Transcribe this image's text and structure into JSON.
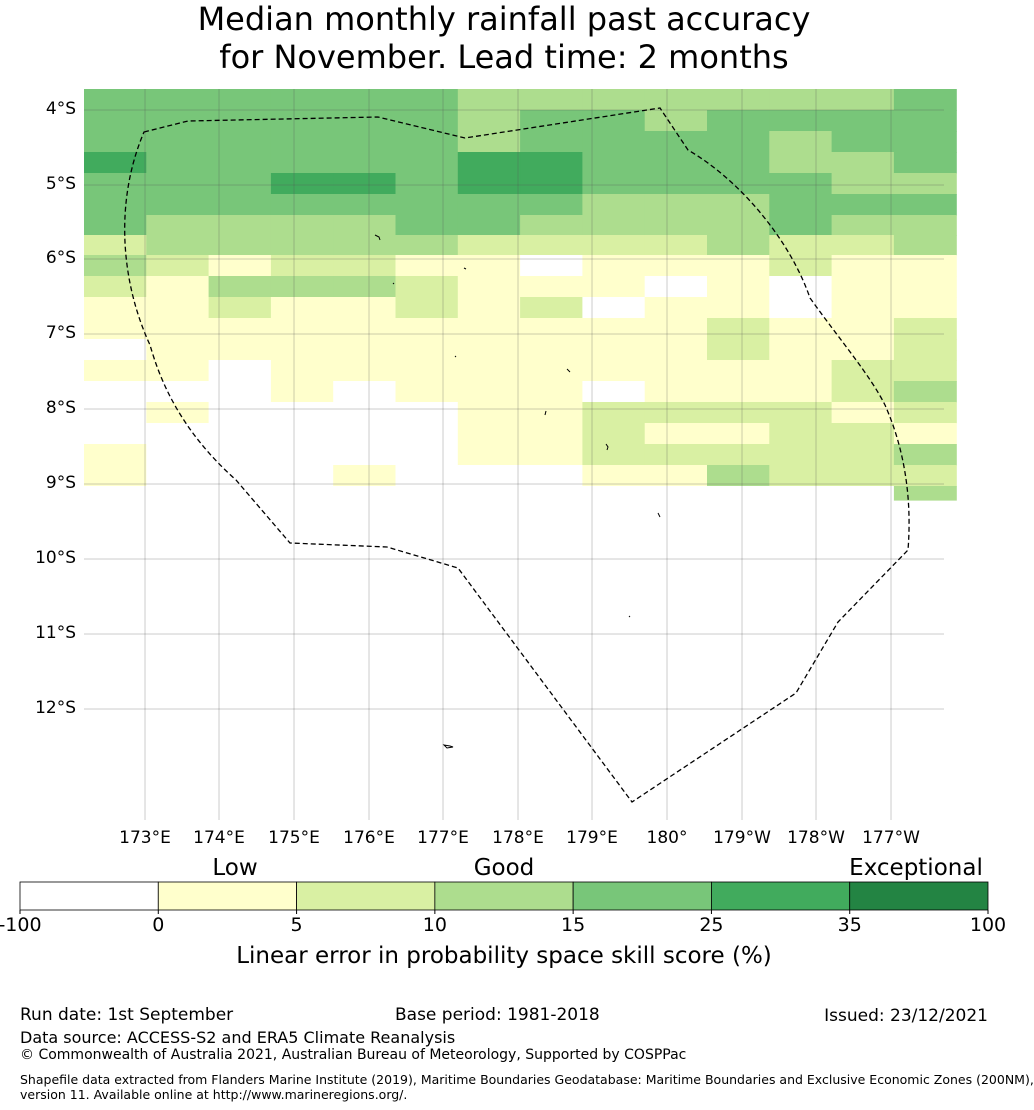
{
  "title_line1": "Median monthly rainfall past accuracy",
  "title_line2": "for November. Lead time: 2 months",
  "lat_labels": [
    "4°S",
    "5°S",
    "6°S",
    "7°S",
    "8°S",
    "9°S",
    "10°S",
    "11°S",
    "12°S"
  ],
  "lon_labels": [
    "173°E",
    "174°E",
    "175°E",
    "176°E",
    "177°E",
    "178°E",
    "179°E",
    "180°",
    "179°W",
    "178°W",
    "177°W"
  ],
  "colorbar": {
    "categories": [
      "Low",
      "Good",
      "Exceptional"
    ],
    "ticks": [
      "-100",
      "0",
      "5",
      "10",
      "15",
      "25",
      "35",
      "100"
    ],
    "colors": [
      "#ffffff",
      "#ffffcc",
      "#d9f0a3",
      "#addd8e",
      "#78c679",
      "#41ab5d",
      "#238443"
    ],
    "title": "Linear error in probability space skill score (%)"
  },
  "grid_values": [
    [
      4,
      4,
      4,
      4,
      4,
      4,
      3,
      3,
      3,
      3,
      3,
      3,
      3,
      4
    ],
    [
      4,
      4,
      4,
      4,
      4,
      4,
      3,
      4,
      4,
      3,
      4,
      4,
      4,
      4
    ],
    [
      4,
      4,
      4,
      4,
      4,
      4,
      3,
      4,
      4,
      4,
      4,
      3,
      4,
      4
    ],
    [
      5,
      4,
      4,
      4,
      4,
      4,
      5,
      5,
      4,
      4,
      4,
      3,
      3,
      4
    ],
    [
      4,
      4,
      4,
      5,
      5,
      4,
      5,
      5,
      4,
      4,
      4,
      4,
      3,
      3
    ],
    [
      4,
      4,
      4,
      4,
      4,
      4,
      4,
      4,
      3,
      3,
      3,
      4,
      4,
      4
    ],
    [
      4,
      3,
      3,
      3,
      3,
      4,
      4,
      3,
      3,
      3,
      3,
      4,
      3,
      3
    ],
    [
      2,
      3,
      3,
      3,
      3,
      3,
      2,
      2,
      2,
      2,
      3,
      2,
      2,
      3
    ],
    [
      3,
      2,
      1,
      2,
      2,
      1,
      1,
      0,
      1,
      1,
      1,
      2,
      1,
      1
    ],
    [
      2,
      1,
      3,
      3,
      3,
      2,
      1,
      1,
      1,
      0,
      1,
      0,
      1,
      1
    ],
    [
      1,
      1,
      2,
      1,
      1,
      2,
      1,
      2,
      0,
      1,
      1,
      -1,
      1,
      1
    ],
    [
      1,
      1,
      1,
      1,
      1,
      1,
      1,
      1,
      1,
      1,
      2,
      1,
      1,
      2
    ],
    [
      -1,
      1,
      1,
      1,
      1,
      1,
      1,
      1,
      1,
      1,
      2,
      1,
      1,
      2
    ],
    [
      1,
      1,
      -1,
      1,
      1,
      1,
      1,
      1,
      1,
      1,
      1,
      1,
      2,
      2
    ],
    [
      -1,
      -1,
      -1,
      1,
      -1,
      1,
      1,
      1,
      0,
      1,
      1,
      1,
      2,
      3
    ],
    [
      -1,
      1,
      -1,
      0,
      0,
      0,
      1,
      1,
      2,
      2,
      2,
      2,
      1,
      2
    ],
    [
      -1,
      -1,
      -1,
      0,
      -1,
      0,
      1,
      1,
      2,
      1,
      1,
      2,
      2,
      1
    ],
    [
      1,
      -1,
      -1,
      0,
      0,
      0,
      1,
      1,
      2,
      2,
      2,
      2,
      2,
      3
    ],
    [
      1,
      -1,
      -1,
      0,
      1,
      -1,
      -1,
      0,
      1,
      1,
      3,
      2,
      2,
      2
    ],
    [
      0,
      -1,
      -1,
      0,
      0,
      0,
      0,
      0,
      0,
      0,
      0,
      0,
      0,
      3
    ]
  ],
  "footer": {
    "run_date": "Run date: 1st September",
    "base_period": "Base period: 1981-2018",
    "issued": "Issued: 23/12/2021",
    "data_source": "Data source: ACCESS-S2 and ERA5 Climate Reanalysis",
    "copyright": "© Commonwealth of Australia 2021, Australian Bureau of Meteorology, Supported by COSPPac",
    "shapefile_line1": "Shapefile data extracted from Flanders Marine Institute (2019), Maritime Boundaries Geodatabase: Maritime Boundaries and Exclusive Economic Zones (200NM),",
    "shapefile_line2": "version 11. Available online at http://www.marineregions.org/."
  }
}
